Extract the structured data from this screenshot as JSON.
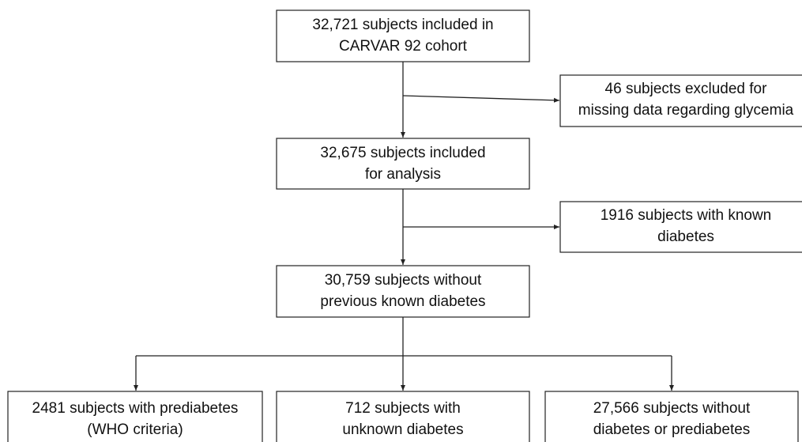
{
  "nodes": [
    {
      "lines": [
        "32,721 subjects included in",
        "CARVAR 92 cohort"
      ]
    },
    {
      "lines": [
        "46 subjects excluded for",
        "missing data regarding glycemia"
      ]
    },
    {
      "lines": [
        "32,675 subjects included",
        "for analysis"
      ]
    },
    {
      "lines": [
        "1916 subjects with known",
        "diabetes"
      ]
    },
    {
      "lines": [
        "30,759 subjects without",
        "previous known diabetes"
      ]
    },
    {
      "lines": [
        "2481 subjects with prediabetes",
        "(WHO criteria)"
      ]
    },
    {
      "lines": [
        "712 subjects with",
        "unknown diabetes"
      ]
    },
    {
      "lines": [
        "27,566 subjects without",
        "diabetes or prediabetes"
      ]
    }
  ]
}
